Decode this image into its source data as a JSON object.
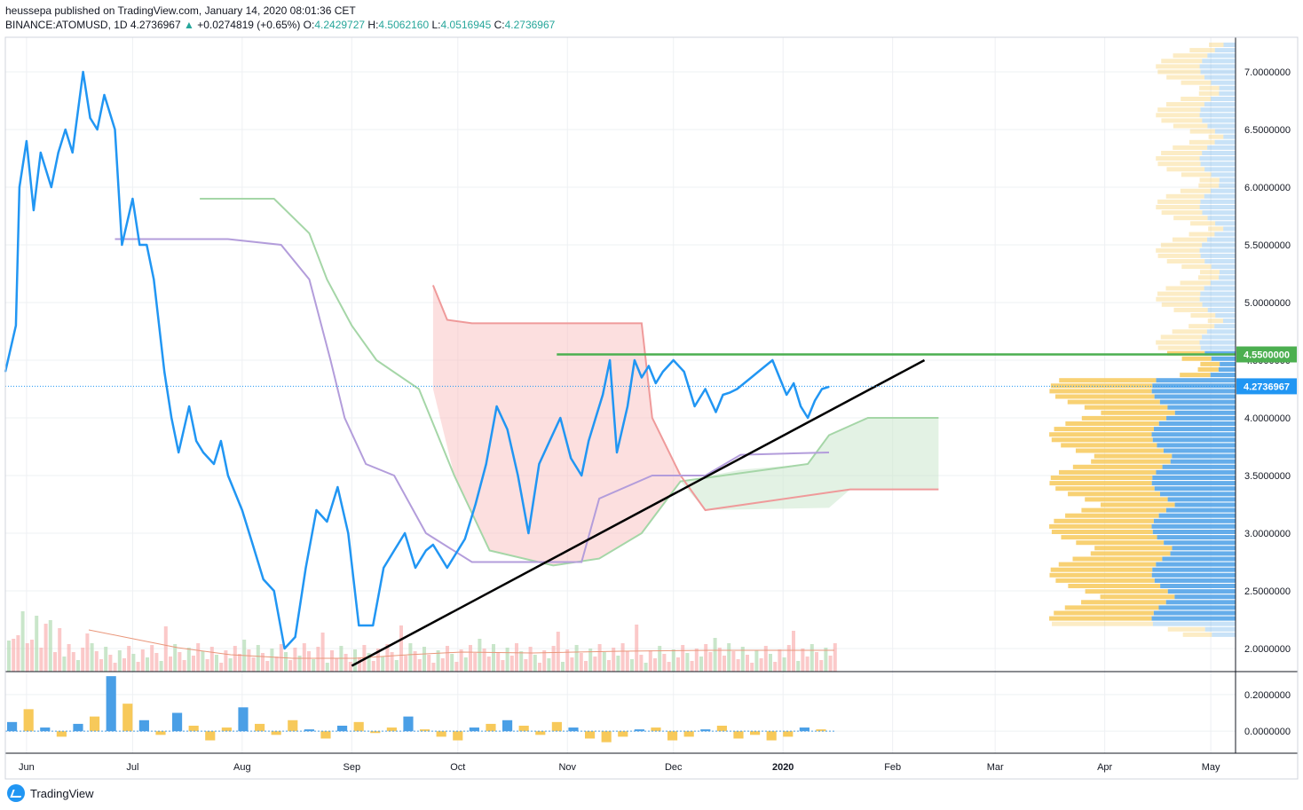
{
  "header": {
    "publisher": "heussepa published on TradingView.com, January 14, 2020 08:01:36 CET",
    "symbol": "BINANCE:ATOMUSD, 1D",
    "last": "4.2736967",
    "change": "+0.0274819 (+0.65%)",
    "o_label": "O:",
    "o_value": "4.2429727",
    "h_label": "H:",
    "h_value": "4.5062160",
    "l_label": "L:",
    "l_value": "4.0516945",
    "c_label": "C:",
    "c_value": "4.2736967"
  },
  "footer": {
    "brand": "TradingView"
  },
  "colors": {
    "price": "#2196f3",
    "trendline": "#000000",
    "resistance": "#4caf50",
    "cloud_bear": "#f8b7b7",
    "cloud_bull": "#c8e6c9",
    "span_a": "#a5d6a7",
    "span_b": "#ef9a9a",
    "base_line": "#b39ddb",
    "volume_up": "#a5d6a7",
    "volume_down": "#f8a5a5",
    "volume_ma": "#e9967a",
    "profile_buy": "#f7c95a",
    "profile_sell": "#4a9fe6",
    "badge_price": "#2196f3",
    "badge_resistance": "#4caf50"
  },
  "chart_data": [
    {
      "type": "line",
      "title": "",
      "price_scale": [
        "7.0000000",
        "6.5000000",
        "6.0000000",
        "5.5000000",
        "5.0000000",
        "4.5000000",
        "4.0000000",
        "3.5000000",
        "3.0000000",
        "2.5000000",
        "2.0000000"
      ],
      "ylim": [
        1.8,
        7.3
      ],
      "time_labels": [
        "Jun",
        "Jul",
        "Aug",
        "Sep",
        "Oct",
        "Nov",
        "Dec",
        "2020",
        "Feb",
        "Mar",
        "Apr",
        "May"
      ],
      "xlim": [
        "2019-05-26",
        "2020-05-08"
      ],
      "series": [
        {
          "x": [
            "2019-05-26",
            "2019-05-29",
            "2019-05-30",
            "2019-06-01",
            "2019-06-03",
            "2019-06-05",
            "2019-06-08",
            "2019-06-10",
            "2019-06-12",
            "2019-06-14",
            "2019-06-17",
            "2019-06-19",
            "2019-06-21",
            "2019-06-23",
            "2019-06-26",
            "2019-06-28",
            "2019-07-01",
            "2019-07-03",
            "2019-07-05",
            "2019-07-07",
            "2019-07-10",
            "2019-07-12",
            "2019-07-14",
            "2019-07-17",
            "2019-07-19",
            "2019-07-21",
            "2019-07-24",
            "2019-07-26",
            "2019-07-28",
            "2019-08-01",
            "2019-08-04",
            "2019-08-07",
            "2019-08-10",
            "2019-08-13",
            "2019-08-16",
            "2019-08-19",
            "2019-08-22",
            "2019-08-25",
            "2019-08-28",
            "2019-08-31",
            "2019-09-03",
            "2019-09-05",
            "2019-09-07",
            "2019-09-10",
            "2019-09-13",
            "2019-09-16",
            "2019-09-19",
            "2019-09-22",
            "2019-09-24",
            "2019-09-26",
            "2019-09-28",
            "2019-09-30",
            "2019-10-03",
            "2019-10-06",
            "2019-10-09",
            "2019-10-12",
            "2019-10-15",
            "2019-10-18",
            "2019-10-21",
            "2019-10-24",
            "2019-10-27",
            "2019-10-30",
            "2019-11-02",
            "2019-11-05",
            "2019-11-07",
            "2019-11-09",
            "2019-11-11",
            "2019-11-13",
            "2019-11-15",
            "2019-11-18",
            "2019-11-20",
            "2019-11-22",
            "2019-11-24",
            "2019-11-26",
            "2019-11-28",
            "2019-12-01",
            "2019-12-04",
            "2019-12-07",
            "2019-12-10",
            "2019-12-13",
            "2019-12-15",
            "2019-12-17",
            "2019-12-19",
            "2019-12-21",
            "2019-12-23",
            "2019-12-25",
            "2019-12-27",
            "2019-12-29",
            "2019-12-31",
            "2020-01-02",
            "2020-01-04",
            "2020-01-06",
            "2020-01-08",
            "2020-01-10",
            "2020-01-12",
            "2020-01-14"
          ],
          "y": [
            4.4,
            4.8,
            6.0,
            6.4,
            5.8,
            6.3,
            6.0,
            6.3,
            6.5,
            6.3,
            7.0,
            6.6,
            6.5,
            6.8,
            6.5,
            5.5,
            5.9,
            5.5,
            5.5,
            5.2,
            4.4,
            4.0,
            3.7,
            4.1,
            3.8,
            3.7,
            3.6,
            3.8,
            3.5,
            3.2,
            2.9,
            2.6,
            2.5,
            2.0,
            2.1,
            2.7,
            3.2,
            3.1,
            3.4,
            3.0,
            2.2,
            2.2,
            2.2,
            2.7,
            2.85,
            3.0,
            2.7,
            2.85,
            2.9,
            2.8,
            2.7,
            2.8,
            2.95,
            3.25,
            3.6,
            4.1,
            3.9,
            3.5,
            3.0,
            3.6,
            3.8,
            4.0,
            3.65,
            3.5,
            3.8,
            4.0,
            4.2,
            4.5,
            3.7,
            4.1,
            4.5,
            4.35,
            4.45,
            4.3,
            4.4,
            4.5,
            4.4,
            4.1,
            4.25,
            4.05,
            4.2,
            4.22,
            4.25,
            4.3,
            4.35,
            4.4,
            4.45,
            4.5,
            4.35,
            4.2,
            4.3,
            4.1,
            4.0,
            4.15,
            4.25,
            4.27
          ]
        }
      ],
      "annotations": [
        {
          "label": "4.5500000",
          "value": 4.55,
          "kind": "horizontal resistance line"
        },
        {
          "label": "4.2736967",
          "value": 4.2736967,
          "kind": "last price"
        }
      ],
      "trendline": {
        "x": [
          "2019-09-01",
          "2020-02-10"
        ],
        "y": [
          1.85,
          4.5
        ]
      }
    },
    {
      "type": "bar",
      "title": "",
      "price_scale": [
        "0.2000000",
        "0.0000000"
      ],
      "ylim": [
        -0.12,
        0.32
      ],
      "series": [
        {
          "values": [
            0.05,
            0.12,
            0.02,
            -0.03,
            0.04,
            0.08,
            0.3,
            0.15,
            0.06,
            -0.02,
            0.1,
            0.03,
            -0.05,
            0.02,
            0.13,
            0.04,
            -0.02,
            0.06,
            0.01,
            -0.04,
            0.03,
            0.05,
            -0.01,
            0.02,
            0.08,
            0.01,
            -0.03,
            -0.05,
            0.02,
            0.04,
            0.06,
            0.03,
            -0.02,
            0.05,
            0.02,
            -0.04,
            -0.06,
            -0.03,
            0.01,
            0.02,
            -0.05,
            -0.03,
            0.01,
            0.03,
            -0.04,
            -0.02,
            -0.05,
            -0.03,
            0.02,
            0.01
          ]
        }
      ]
    }
  ]
}
